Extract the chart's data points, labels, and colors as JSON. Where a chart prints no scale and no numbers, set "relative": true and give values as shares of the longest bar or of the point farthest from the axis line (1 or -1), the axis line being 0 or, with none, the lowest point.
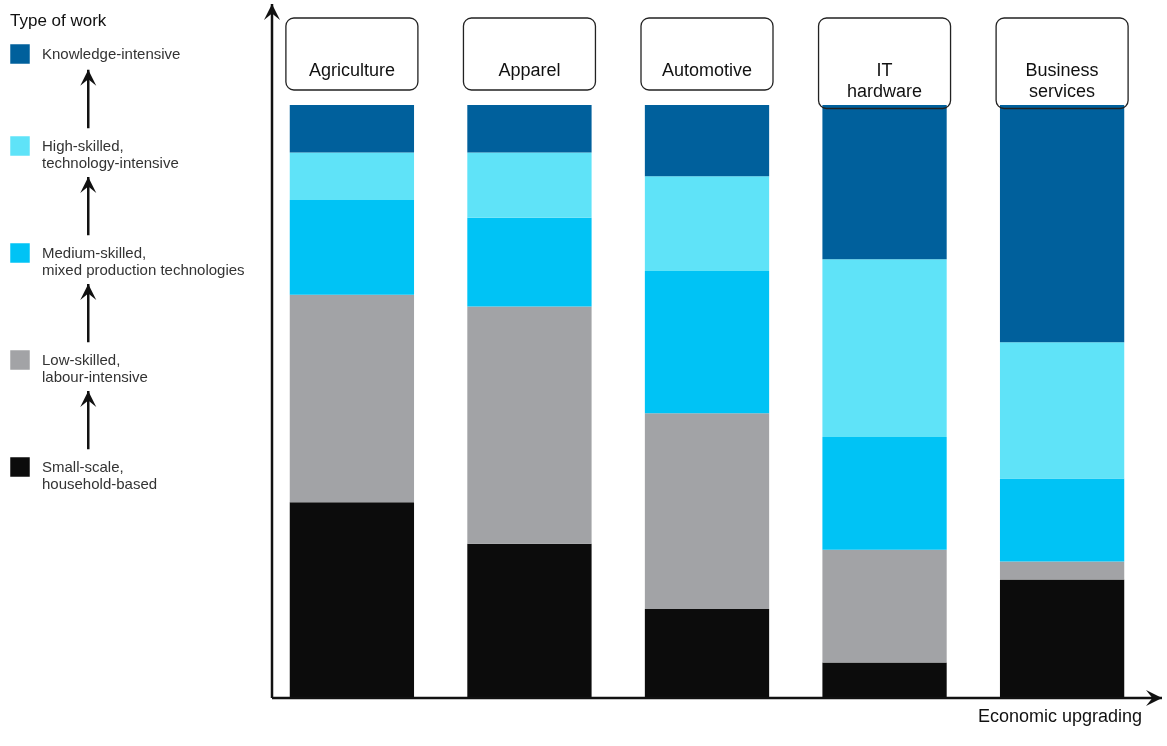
{
  "chart_data": {
    "type": "bar",
    "stacked": true,
    "relative": true,
    "categories": [
      "Agriculture",
      "Apparel",
      "Automotive",
      "IT hardware",
      "Business services"
    ],
    "series": [
      {
        "name": "Small-scale, household-based",
        "color": "#0c0c0c",
        "values": [
          0.33,
          0.26,
          0.15,
          0.06,
          0.2
        ]
      },
      {
        "name": "Low-skilled, labour-intensive",
        "color": "#a2a3a6",
        "values": [
          0.35,
          0.4,
          0.33,
          0.19,
          0.03
        ]
      },
      {
        "name": "Medium-skilled, mixed production technologies",
        "color": "#00c3f5",
        "values": [
          0.16,
          0.15,
          0.24,
          0.19,
          0.14
        ]
      },
      {
        "name": "High-skilled, technology-intensive",
        "color": "#5fe3f8",
        "values": [
          0.08,
          0.11,
          0.16,
          0.3,
          0.23
        ]
      },
      {
        "name": "Knowledge-intensive",
        "color": "#00609c",
        "values": [
          0.08,
          0.08,
          0.12,
          0.26,
          0.4
        ]
      }
    ],
    "legend": "left",
    "legend_title": "Type of work",
    "xlabel": "Economic upgrading"
  }
}
